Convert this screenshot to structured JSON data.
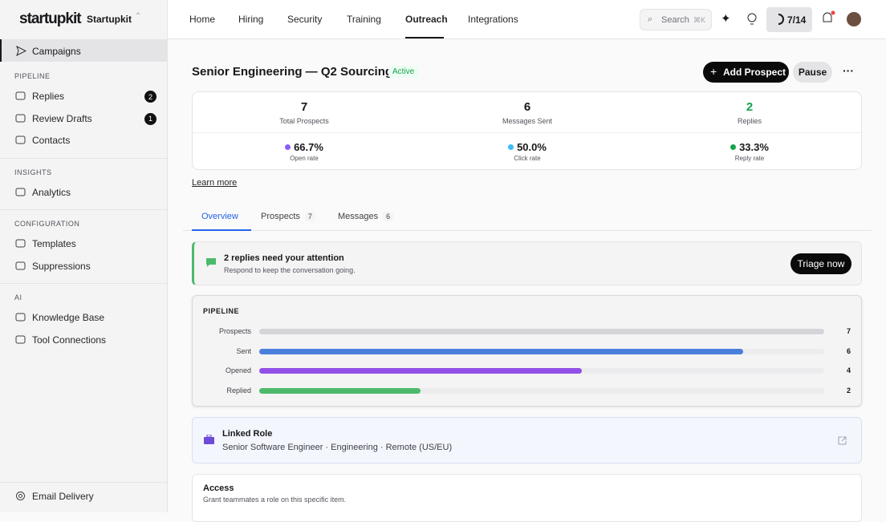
{
  "sidebar": {
    "brand": "startupkit",
    "workspace": "Startupkit",
    "current": "Campaigns",
    "sections": [
      {
        "title": "PIPELINE",
        "items": [
          {
            "label": "Replies",
            "badge": "2"
          },
          {
            "label": "Review Drafts",
            "badge": "1"
          },
          {
            "label": "Contacts"
          }
        ]
      },
      {
        "title": "INSIGHTS",
        "items": [
          {
            "label": "Analytics"
          }
        ]
      },
      {
        "title": "CONFIGURATION",
        "items": [
          {
            "label": "Templates"
          },
          {
            "label": "Suppressions"
          }
        ]
      },
      {
        "title": "AI",
        "items": [
          {
            "label": "Knowledge Base"
          },
          {
            "label": "Tool Connections"
          }
        ]
      }
    ],
    "footer": "Email Delivery"
  },
  "topnav": {
    "tabs": [
      "Home",
      "Hiring",
      "Security",
      "Training",
      "Outreach",
      "Integrations"
    ],
    "search": "Search",
    "shortcut": "⌘K",
    "progress": "7/14"
  },
  "campaign": {
    "title": "Senior Engineering — Q2 Sourcing",
    "status": "Active",
    "primary_action": "Add Prospect",
    "secondary_action": "Pause"
  },
  "stats": [
    {
      "value": "7",
      "label": "Total Prospects"
    },
    {
      "value": "6",
      "label": "Messages Sent"
    },
    {
      "value": "2",
      "label": "Replies"
    }
  ],
  "rates": [
    {
      "value": "66.7%",
      "label": "Open rate"
    },
    {
      "value": "50.0%",
      "label": "Click rate"
    },
    {
      "value": "33.3%",
      "label": "Reply rate"
    }
  ],
  "learn_more": "Learn more",
  "tabs": [
    {
      "label": "Overview"
    },
    {
      "label": "Prospects",
      "count": "7"
    },
    {
      "label": "Messages",
      "count": "6"
    }
  ],
  "alert": {
    "title": "2 replies need your attention",
    "text": "Respond to keep the conversation going.",
    "action": "Triage now"
  },
  "pipeline": {
    "title": "PIPELINE",
    "stages": [
      {
        "label": "Prospects",
        "count": 7,
        "color": "#d6d4d8"
      },
      {
        "label": "Sent",
        "count": 6,
        "color": "#4a7fdc"
      },
      {
        "label": "Opened",
        "count": 4,
        "color": "#9150e6"
      },
      {
        "label": "Replied",
        "count": 2,
        "color": "#4cba6a"
      }
    ]
  },
  "linked_role": {
    "title": "Linked Role",
    "text": "Senior Software Engineer · Engineering · Remote (US/EU)"
  },
  "access": {
    "title": "Access",
    "text": "Grant teammates a role on this specific item."
  }
}
